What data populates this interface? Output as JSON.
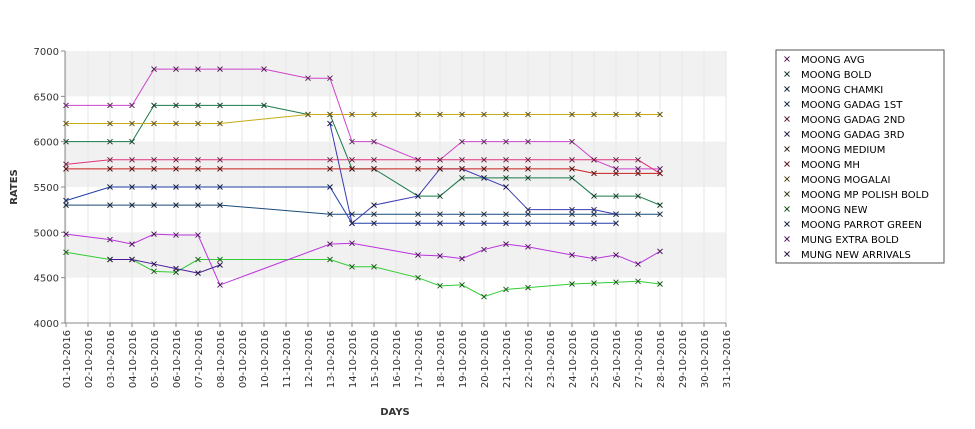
{
  "chart_data": {
    "type": "line",
    "xlabel": "DAYS",
    "ylabel": "RATES",
    "ylim": [
      4000,
      7000
    ],
    "yticks": [
      4000,
      4500,
      5000,
      5500,
      6000,
      6500,
      7000
    ],
    "ytick_labels": [
      "4000",
      "4500",
      "5000",
      "5500",
      "6000",
      "6500",
      "7000"
    ],
    "x": [
      "01-10-2016",
      "02-10-2016",
      "03-10-2016",
      "04-10-2016",
      "05-10-2016",
      "06-10-2016",
      "07-10-2016",
      "08-10-2016",
      "09-10-2016",
      "10-10-2016",
      "11-10-2016",
      "12-10-2016",
      "13-10-2016",
      "14-10-2016",
      "15-10-2016",
      "16-10-2016",
      "17-10-2016",
      "18-10-2016",
      "19-10-2016",
      "20-10-2016",
      "21-10-2016",
      "22-10-2016",
      "23-10-2016",
      "24-10-2016",
      "25-10-2016",
      "26-10-2016",
      "27-10-2016",
      "28-10-2016",
      "29-10-2016",
      "30-10-2016",
      "31-10-2016"
    ],
    "grid": "horizontal bands",
    "legend_position": "right",
    "series": [
      {
        "name": "MOONG AVG",
        "color": "#cc44cc",
        "values": [
          6400,
          null,
          6400,
          6400,
          6800,
          6800,
          6800,
          6800,
          null,
          6800,
          null,
          6700,
          6700,
          6000,
          6000,
          null,
          5800,
          5800,
          6000,
          6000,
          6000,
          6000,
          null,
          6000,
          5800,
          5700,
          5700,
          5700,
          null,
          null,
          null
        ]
      },
      {
        "name": "MOONG BOLD",
        "color": "#1a7a4a",
        "values": [
          6000,
          null,
          6000,
          6000,
          6400,
          6400,
          6400,
          6400,
          null,
          6400,
          null,
          6300,
          6300,
          5700,
          5700,
          null,
          5400,
          5400,
          5600,
          5600,
          5600,
          5600,
          null,
          5600,
          5400,
          5400,
          5400,
          5300,
          null,
          null,
          null
        ]
      },
      {
        "name": "MOONG CHAMKI",
        "color": "#1a4a7a",
        "values": [
          5300,
          null,
          5300,
          5300,
          5300,
          5300,
          5300,
          5300,
          null,
          null,
          null,
          null,
          5200,
          5200,
          5200,
          null,
          5200,
          5200,
          5200,
          5200,
          5200,
          5200,
          null,
          5200,
          5200,
          5200,
          5200,
          5200,
          null,
          null,
          null
        ]
      },
      {
        "name": "MOONG GADAG 1ST",
        "color": "#1f3fa8",
        "values": [
          5350,
          null,
          5500,
          5500,
          5500,
          5500,
          5500,
          5500,
          null,
          null,
          null,
          null,
          5500,
          5100,
          5100,
          null,
          5100,
          5100,
          5100,
          5100,
          5100,
          5100,
          null,
          5100,
          5100,
          5100,
          null,
          null,
          null,
          null,
          null
        ]
      },
      {
        "name": "MOONG GADAG 2ND",
        "color": "#e0337a",
        "values": [
          5750,
          null,
          5800,
          5800,
          5800,
          5800,
          5800,
          5800,
          null,
          null,
          null,
          null,
          5800,
          5800,
          5800,
          null,
          5800,
          5800,
          5800,
          5800,
          5800,
          5800,
          null,
          5800,
          5800,
          5800,
          5800,
          5650,
          null,
          null,
          null
        ]
      },
      {
        "name": "MOONG GADAG 3RD",
        "color": "#3a3ab0",
        "values": [
          null,
          null,
          null,
          null,
          null,
          null,
          null,
          null,
          null,
          null,
          null,
          null,
          6200,
          5100,
          5300,
          null,
          5400,
          5700,
          5700,
          5600,
          5500,
          5250,
          null,
          5250,
          5250,
          5200,
          null,
          null,
          null,
          null,
          null
        ]
      },
      {
        "name": "MOONG MEDIUM",
        "color": "#7a5a3a",
        "values": [
          null,
          null,
          null,
          null,
          null,
          null,
          null,
          null,
          null,
          null,
          null,
          null,
          null,
          null,
          null,
          null,
          null,
          null,
          null,
          null,
          null,
          null,
          null,
          null,
          null,
          null,
          null,
          null,
          null,
          null,
          null
        ]
      },
      {
        "name": "MOONG MH",
        "color": "#c81e1e",
        "values": [
          5700,
          null,
          5700,
          5700,
          5700,
          5700,
          5700,
          5700,
          null,
          null,
          null,
          null,
          5700,
          5700,
          5700,
          null,
          5700,
          5700,
          5700,
          5700,
          5700,
          5700,
          null,
          5700,
          5650,
          5650,
          5650,
          5650,
          null,
          null,
          null
        ]
      },
      {
        "name": "MOONG MOGALAI",
        "color": "#c8aa14",
        "values": [
          6200,
          null,
          6200,
          6200,
          6200,
          6200,
          6200,
          6200,
          null,
          null,
          null,
          6300,
          6300,
          6300,
          6300,
          null,
          6300,
          6300,
          6300,
          6300,
          6300,
          6300,
          null,
          6300,
          6300,
          6300,
          6300,
          6300,
          null,
          null,
          null
        ]
      },
      {
        "name": "MOONG MP POLISH BOLD",
        "color": "#5a8a1a",
        "values": [
          null,
          null,
          null,
          null,
          null,
          null,
          null,
          null,
          null,
          null,
          null,
          null,
          null,
          null,
          null,
          null,
          null,
          null,
          null,
          null,
          null,
          null,
          null,
          null,
          null,
          null,
          null,
          null,
          null,
          null,
          null
        ]
      },
      {
        "name": "MOONG NEW",
        "color": "#33cc33",
        "values": [
          4780,
          null,
          4700,
          4700,
          4570,
          4560,
          4700,
          4700,
          null,
          null,
          null,
          null,
          4700,
          4620,
          4620,
          null,
          4500,
          4410,
          4420,
          4290,
          4370,
          4390,
          null,
          4430,
          4440,
          4450,
          4460,
          4430,
          null,
          null,
          null
        ]
      },
      {
        "name": "MOONG PARROT GREEN",
        "color": "#1a3a9a",
        "values": [
          null,
          null,
          null,
          null,
          null,
          null,
          null,
          null,
          null,
          null,
          null,
          null,
          null,
          null,
          null,
          null,
          null,
          null,
          null,
          null,
          null,
          null,
          null,
          null,
          null,
          null,
          null,
          null,
          null,
          null,
          null
        ]
      },
      {
        "name": "MUNG EXTRA BOLD",
        "color": "#bb33dd",
        "values": [
          4980,
          null,
          4920,
          4870,
          4980,
          4970,
          4970,
          4420,
          null,
          null,
          null,
          null,
          4870,
          4880,
          null,
          null,
          4750,
          4740,
          4710,
          4810,
          4870,
          4840,
          null,
          4750,
          4710,
          4750,
          4650,
          4790,
          null,
          null,
          null
        ]
      },
      {
        "name": "MUNG NEW ARRIVALS",
        "color": "#4a1a9a",
        "values": [
          null,
          null,
          4700,
          4700,
          4650,
          4600,
          4550,
          4640,
          null,
          null,
          null,
          null,
          null,
          null,
          null,
          null,
          null,
          null,
          null,
          null,
          null,
          null,
          null,
          null,
          null,
          null,
          null,
          null,
          null,
          null,
          null
        ]
      }
    ]
  }
}
